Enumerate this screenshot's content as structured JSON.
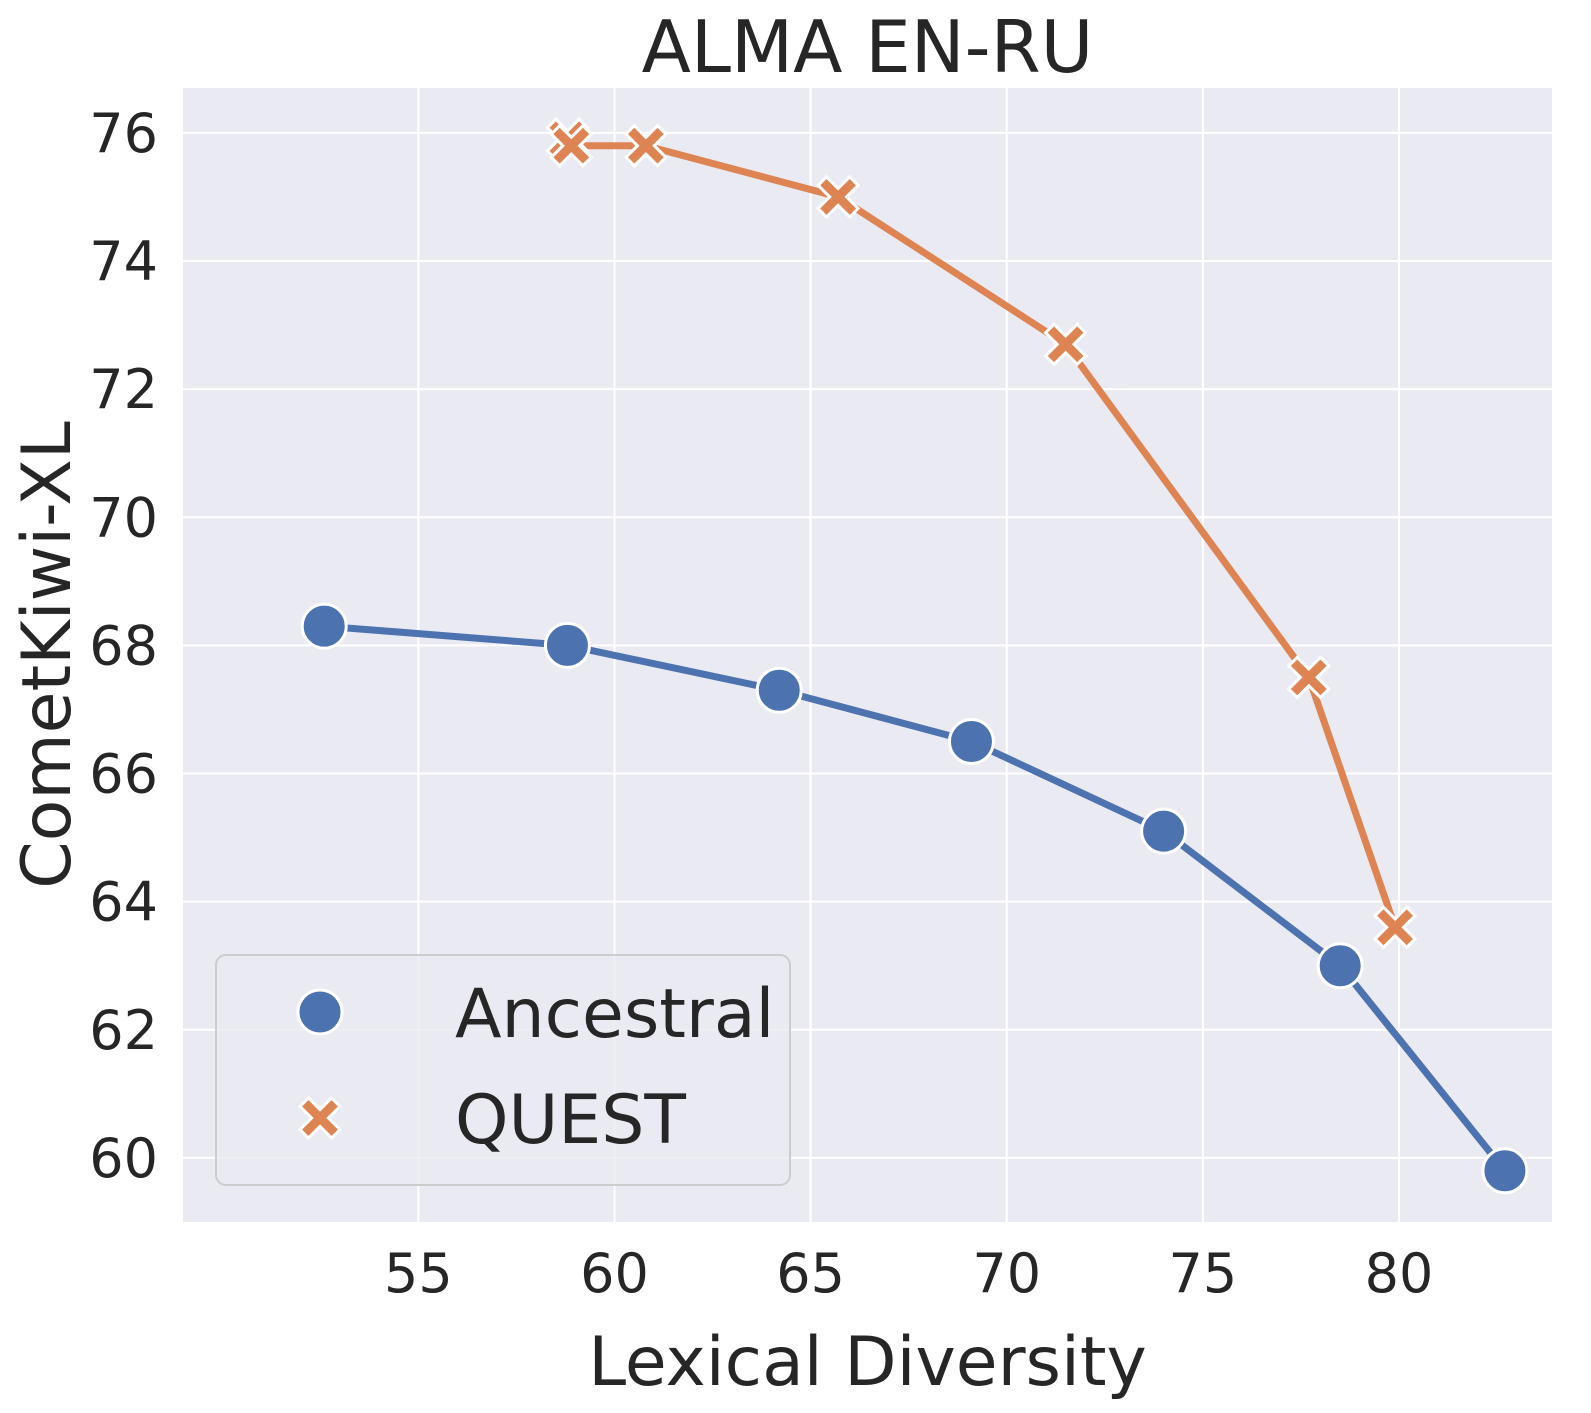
{
  "chart_data": {
    "type": "line",
    "title": "ALMA EN-RU",
    "xlabel": "Lexical Diversity",
    "ylabel": "CometKiwi-XL",
    "xlim": [
      49.0,
      83.9
    ],
    "ylim": [
      59.0,
      76.7
    ],
    "xticks": [
      55,
      60,
      65,
      70,
      75,
      80
    ],
    "yticks": [
      60,
      62,
      64,
      66,
      68,
      70,
      72,
      74,
      76
    ],
    "grid": true,
    "background_color": "#EAEAF2",
    "legend_position": "lower-left",
    "series": [
      {
        "name": "Ancestral",
        "color": "#4C72B0",
        "marker": "circle",
        "points": [
          {
            "x": 52.6,
            "y": 68.3
          },
          {
            "x": 58.8,
            "y": 68.0
          },
          {
            "x": 64.2,
            "y": 67.3
          },
          {
            "x": 69.1,
            "y": 66.5
          },
          {
            "x": 74.0,
            "y": 65.1
          },
          {
            "x": 78.5,
            "y": 63.0
          },
          {
            "x": 82.7,
            "y": 59.8
          }
        ]
      },
      {
        "name": "QUEST",
        "color": "#DD8452",
        "marker": "x",
        "points": [
          {
            "x": 58.8,
            "y": 75.9
          },
          {
            "x": 58.9,
            "y": 75.8
          },
          {
            "x": 60.8,
            "y": 75.8
          },
          {
            "x": 65.7,
            "y": 75.0
          },
          {
            "x": 71.5,
            "y": 72.7
          },
          {
            "x": 77.7,
            "y": 67.5
          },
          {
            "x": 79.9,
            "y": 63.6
          }
        ]
      }
    ]
  }
}
